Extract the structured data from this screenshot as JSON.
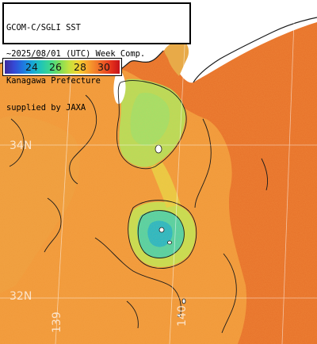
{
  "header": {
    "lines": [
      "GCOM-C/SGLI SST",
      "~2025/08/01 (UTC) Week Comp.",
      "Kanagawa Prefecture",
      "supplied by JAXA"
    ]
  },
  "legend": {
    "ticks": [
      "24",
      "26",
      "28",
      "30"
    ],
    "colors": [
      "#3b2a9a",
      "#1e78e0",
      "#22c6b4",
      "#7ede57",
      "#f3d231",
      "#f27a2a",
      "#c4121a"
    ]
  },
  "grid_labels": {
    "lat_34": "34N",
    "lat_32": "32N",
    "lon_139": "139",
    "lon_140": "140"
  },
  "palette": {
    "land": "#ffffff",
    "sea_warm": "#e8742c",
    "sea_mid": "#f2a13e",
    "sea_cool": "#a9e05c",
    "sea_cold": "#2fc9b4",
    "contour": "#1a1a1a",
    "gridline": "#ffffff"
  }
}
